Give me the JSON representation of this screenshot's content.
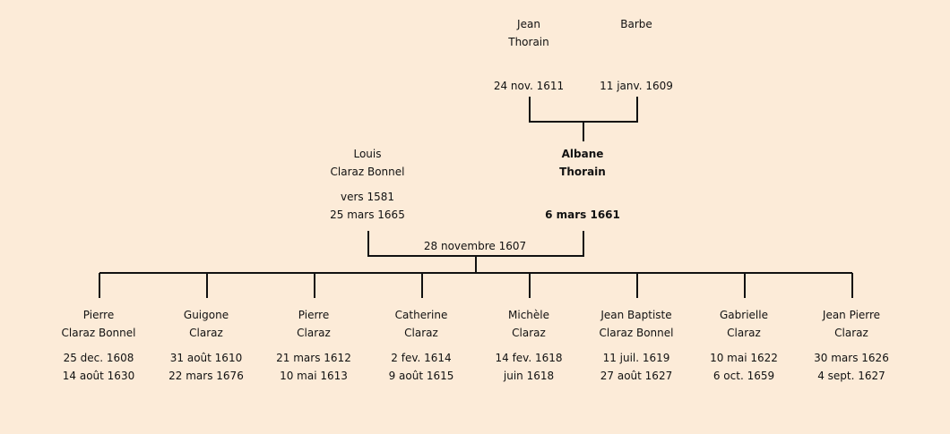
{
  "grandparents": [
    {
      "first": "Jean",
      "last": "Thorain",
      "dates": "24 nov. 1611"
    },
    {
      "first": "Barbe",
      "last": "",
      "dates": "11 janv. 1609"
    }
  ],
  "parents": [
    {
      "first": "Louis",
      "last": "Claraz Bonnel",
      "birth": "vers 1581",
      "death": "25 mars 1665"
    },
    {
      "first": "Albane",
      "last": "Thorain",
      "birth": "",
      "death": "6 mars 1661",
      "highlight": true
    }
  ],
  "marriage": "28 novembre 1607",
  "children": [
    {
      "first": "Pierre",
      "last": "Claraz Bonnel",
      "birth": "25 dec. 1608",
      "death": "14 août 1630"
    },
    {
      "first": "Guigone",
      "last": "Claraz",
      "birth": "31 août 1610",
      "death": "22 mars 1676"
    },
    {
      "first": "Pierre",
      "last": "Claraz",
      "birth": "21 mars 1612",
      "death": "10 mai 1613"
    },
    {
      "first": "Catherine",
      "last": "Claraz",
      "birth": "2 fev. 1614",
      "death": "9 août 1615"
    },
    {
      "first": "Michèle",
      "last": "Claraz",
      "birth": "14 fev. 1618",
      "death": "juin 1618"
    },
    {
      "first": "Jean Baptiste",
      "last": "Claraz Bonnel",
      "birth": "11 juil. 1619",
      "death": "27 août 1627"
    },
    {
      "first": "Gabrielle",
      "last": "Claraz",
      "birth": "10 mai 1622",
      "death": "6 oct. 1659"
    },
    {
      "first": "Jean Pierre",
      "last": "Claraz",
      "birth": "30 mars 1626",
      "death": "4 sept. 1627"
    }
  ]
}
